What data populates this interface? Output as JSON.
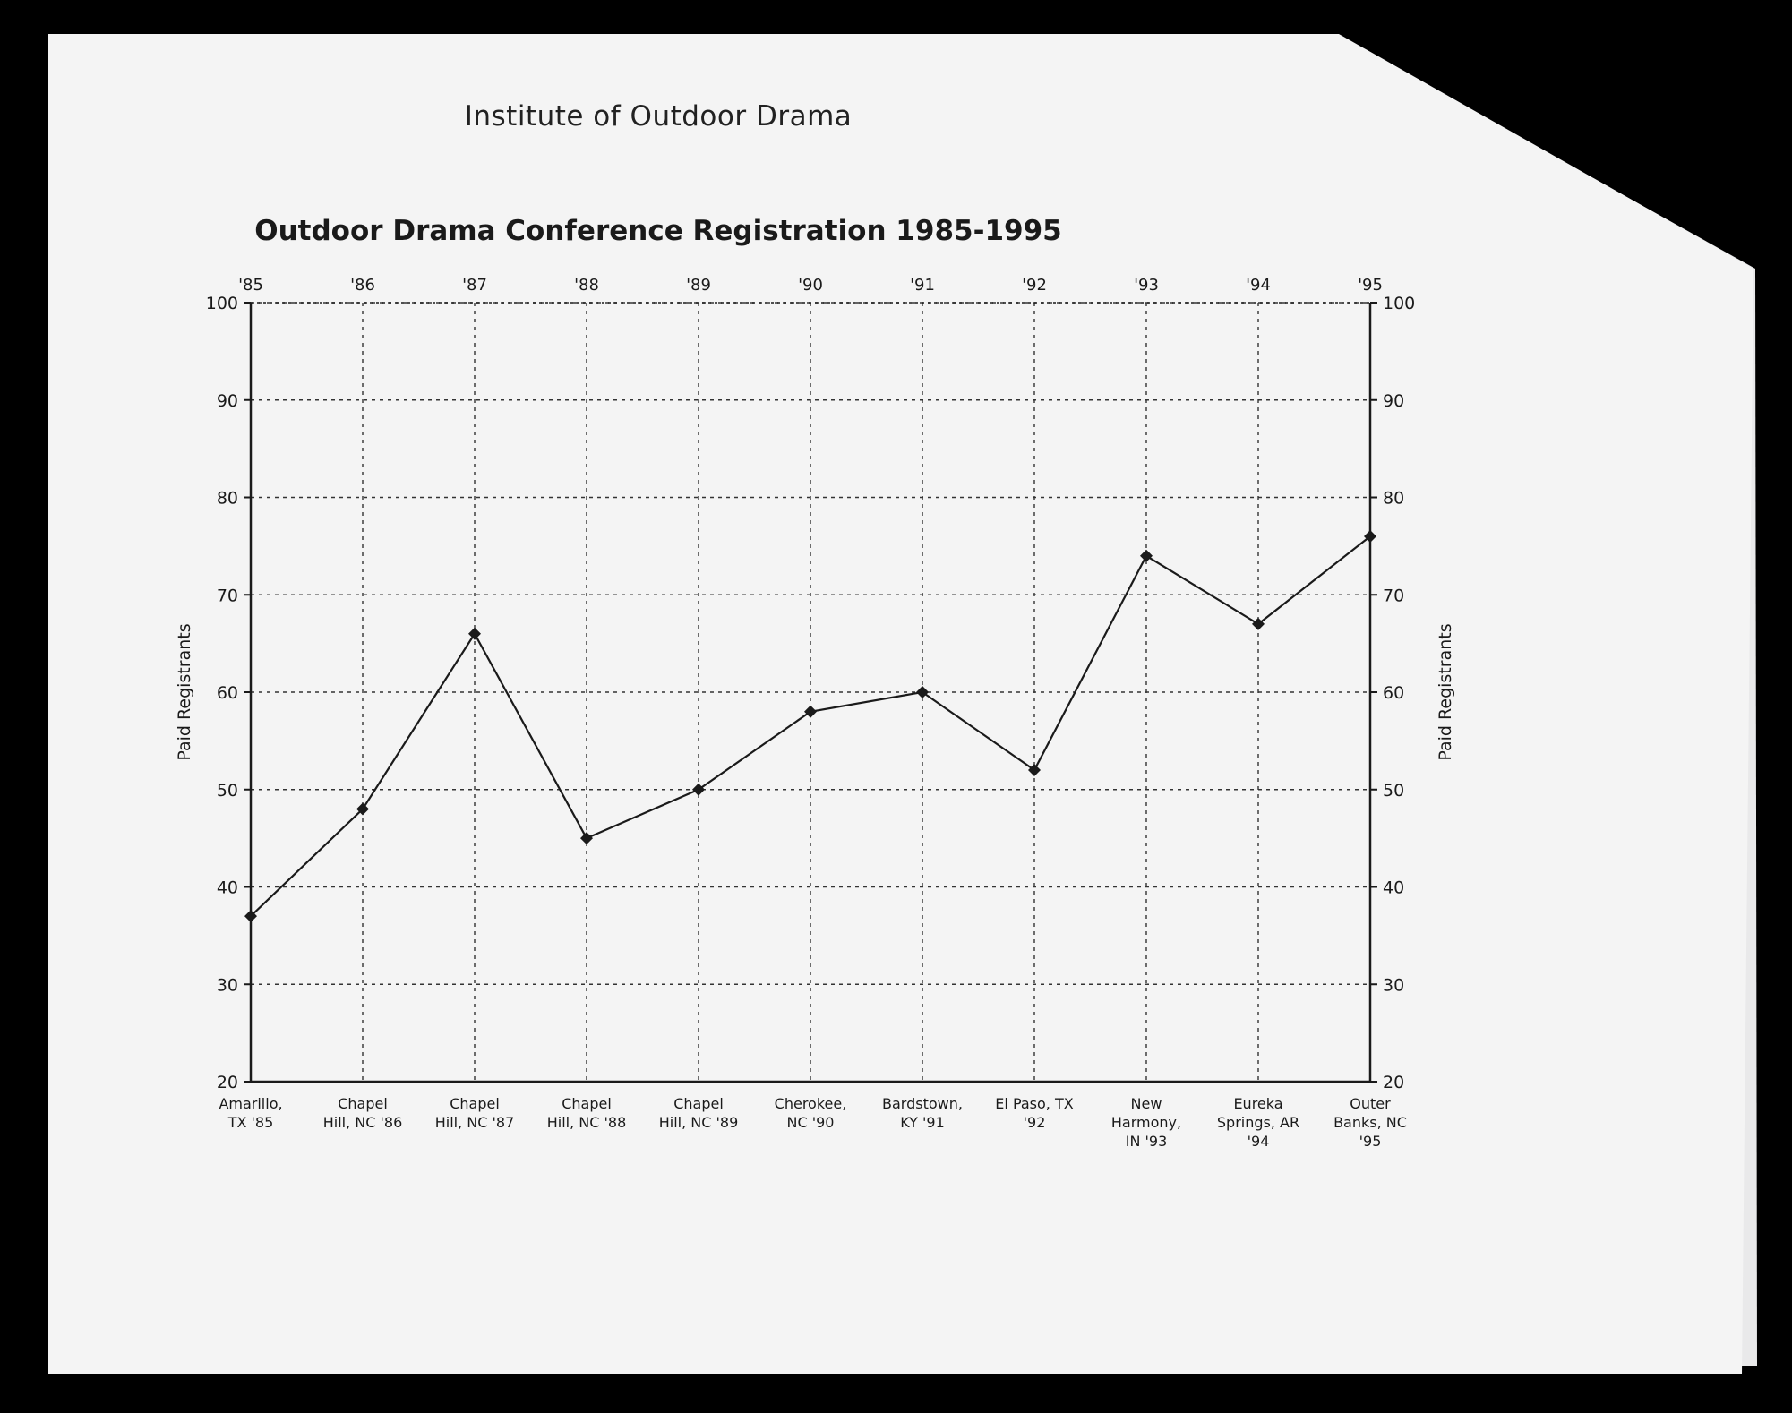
{
  "header": {
    "organization": "Institute of Outdoor Drama"
  },
  "chart_data": {
    "type": "line",
    "title": "Outdoor Drama Conference Registration 1985-1995",
    "xlabel": "",
    "ylabel": "Paid Registrants",
    "ylabel_right": "Paid Registrants",
    "ylim": [
      20,
      100
    ],
    "yticks": [
      20,
      30,
      40,
      50,
      60,
      70,
      80,
      90,
      100
    ],
    "grid": true,
    "top_labels": [
      "'85",
      "'86",
      "'87",
      "'88",
      "'89",
      "'90",
      "'91",
      "'92",
      "'93",
      "'94",
      "'95"
    ],
    "categories": [
      [
        "Amarillo,",
        "TX '85"
      ],
      [
        "Chapel",
        "Hill, NC '86"
      ],
      [
        "Chapel",
        "Hill, NC '87"
      ],
      [
        "Chapel",
        "Hill, NC '88"
      ],
      [
        "Chapel",
        "Hill, NC '89"
      ],
      [
        "Cherokee,",
        "NC '90"
      ],
      [
        "Bardstown,",
        "KY '91"
      ],
      [
        "El Paso, TX",
        "'92"
      ],
      [
        "New",
        "Harmony,",
        "IN '93"
      ],
      [
        "Eureka",
        "Springs, AR",
        "'94"
      ],
      [
        "Outer",
        "Banks, NC",
        "'95"
      ]
    ],
    "series": [
      {
        "values": [
          37,
          48,
          66,
          45,
          50,
          58,
          60,
          52,
          74,
          67,
          76
        ]
      }
    ],
    "colors": {
      "line": "#1a1a1a",
      "grid": "#333333",
      "paper": "#f4f4f4"
    }
  }
}
